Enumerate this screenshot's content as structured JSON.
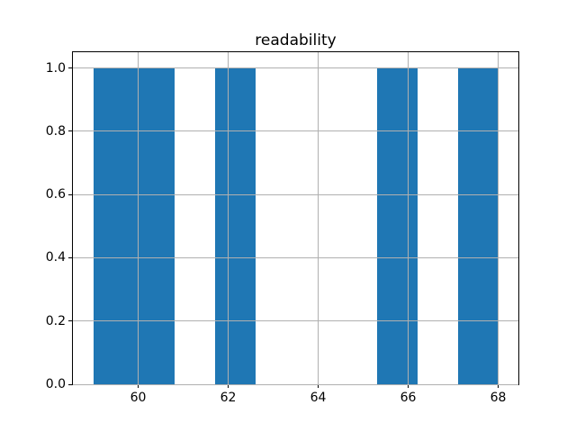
{
  "chart": {
    "title": "readability",
    "background_color": "#ffffff",
    "spine_color": "#000000"
  },
  "chart_data": {
    "type": "bar",
    "subtype": "histogram",
    "title": "readability",
    "xlabel": "",
    "ylabel": "",
    "bin_edges": [
      59.0,
      59.9,
      60.8,
      61.7,
      62.6,
      63.5,
      64.4,
      65.3,
      66.2,
      67.1,
      68.0
    ],
    "counts": [
      1,
      1,
      0,
      1,
      0,
      0,
      0,
      1,
      0,
      1
    ],
    "xlim": [
      58.55,
      68.45
    ],
    "ylim": [
      0,
      1.05
    ],
    "xticks": [
      60,
      62,
      64,
      66,
      68
    ],
    "yticks": [
      0.0,
      0.2,
      0.4,
      0.6,
      0.8,
      1.0
    ],
    "xtick_labels": [
      "60",
      "62",
      "64",
      "66",
      "68"
    ],
    "ytick_labels": [
      "0.0",
      "0.2",
      "0.4",
      "0.6",
      "0.8",
      "1.0"
    ],
    "grid": true,
    "grid_on_top": true,
    "grid_color": "#b0b0b0",
    "bar_color": "#1f77b4",
    "legend": false
  }
}
